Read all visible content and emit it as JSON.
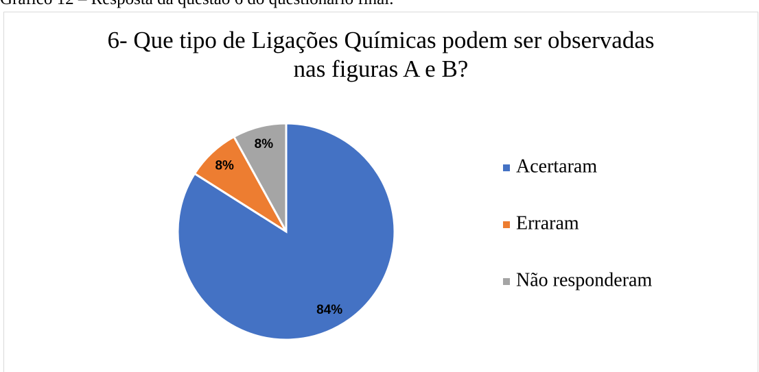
{
  "caption": "Gráfico 12 – Resposta da questão 6 do questionário final.",
  "chart_data": {
    "type": "pie",
    "title": [
      "6- Que tipo de Ligações Químicas podem ser observadas",
      "nas figuras A e B?"
    ],
    "categories": [
      "Acertaram",
      "Erraram",
      "Não responderam"
    ],
    "values": [
      84,
      8,
      8
    ],
    "value_labels": [
      "84%",
      "8%",
      "8%"
    ],
    "colors": [
      "#4472c4",
      "#ed7d31",
      "#a5a5a5"
    ],
    "legend": "right"
  }
}
